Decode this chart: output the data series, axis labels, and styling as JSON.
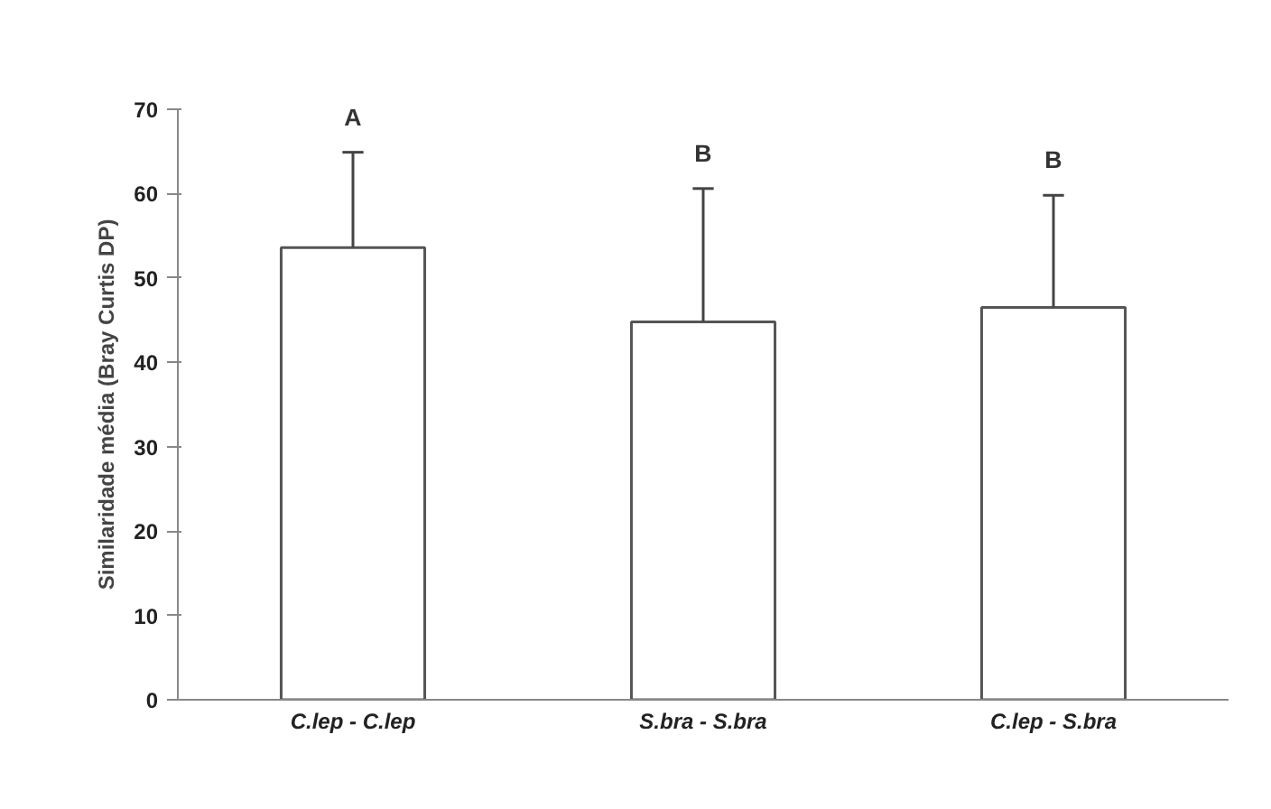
{
  "chart_data": {
    "type": "bar",
    "ylabel": "Similaridade média (Bray Curtis DP)",
    "categories": [
      "C.lep - C.lep",
      "S.bra - S.bra",
      "C.lep - S.bra"
    ],
    "values": [
      53.6,
      44.8,
      46.5
    ],
    "errors": [
      11.3,
      15.8,
      13.3
    ],
    "color": "#ffffff",
    "ylim": [
      0,
      70
    ],
    "yticks": [
      0,
      10,
      20,
      30,
      40,
      50,
      60,
      70
    ],
    "grid": false,
    "annotations": [
      "A",
      "B",
      "B"
    ]
  }
}
